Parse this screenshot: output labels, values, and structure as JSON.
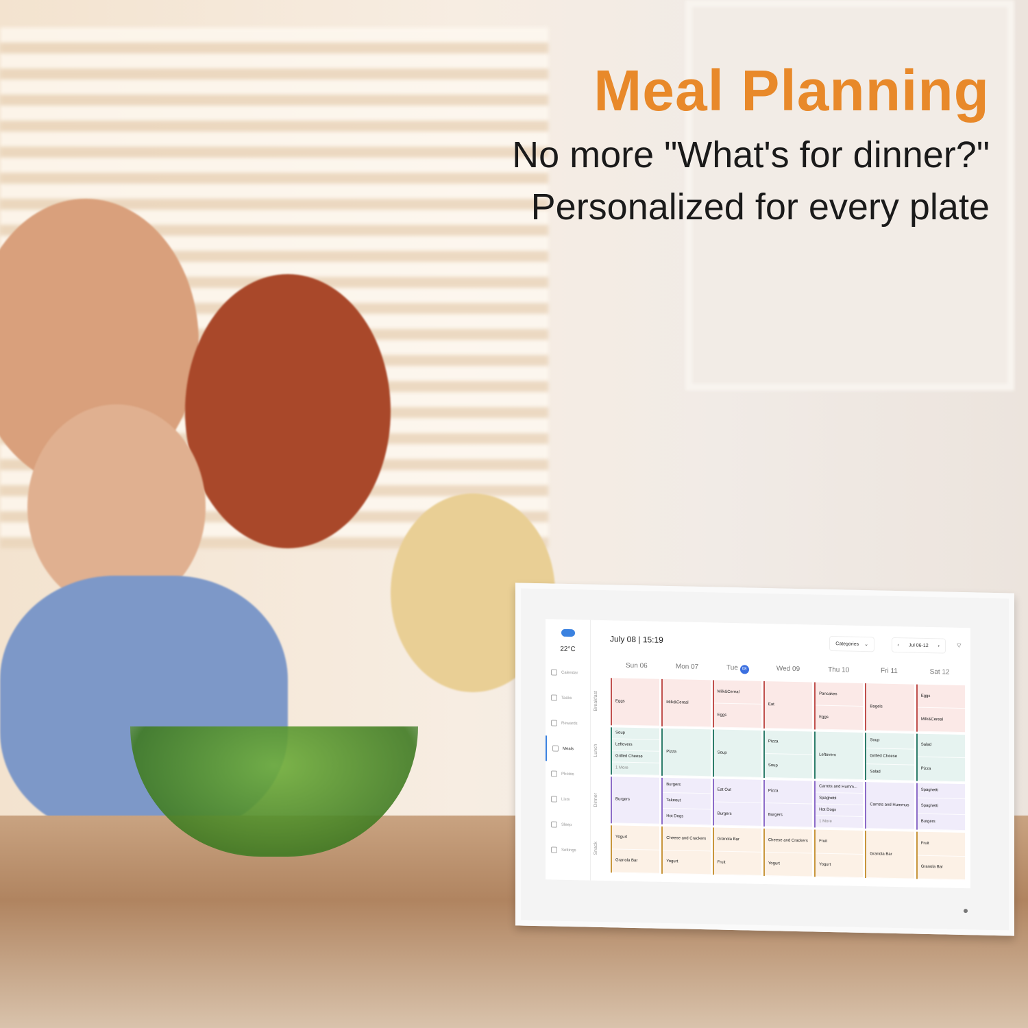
{
  "headline": {
    "title": "Meal Planning",
    "line1": "No more \"What's for dinner?\"",
    "line2": "Personalized for every plate"
  },
  "colors": {
    "accent": "#e8892a",
    "breakfast": "#fbe9e7",
    "breakfast_bar": "#c0504d",
    "lunch": "#e6f3f0",
    "lunch_bar": "#2e7d6b",
    "dinner": "#f0ecfa",
    "dinner_bar": "#8c6cc8",
    "snack": "#fcf1e6",
    "snack_bar": "#c8963c"
  },
  "screen": {
    "weather": {
      "icon": "cloud-icon",
      "temp": "22°C"
    },
    "nav": [
      {
        "label": "Calendar",
        "icon": "calendar-icon"
      },
      {
        "label": "Tasks",
        "icon": "tasks-icon"
      },
      {
        "label": "Rewards",
        "icon": "rewards-icon"
      },
      {
        "label": "Meals",
        "icon": "meals-icon"
      },
      {
        "label": "Photos",
        "icon": "photos-icon"
      },
      {
        "label": "Lists",
        "icon": "lists-icon"
      },
      {
        "label": "Sleep",
        "icon": "sleep-icon"
      },
      {
        "label": "Settings",
        "icon": "settings-icon"
      }
    ],
    "date": "July 08",
    "time": "15:19",
    "categories": "Categories",
    "range": "Jul 06-12",
    "days": [
      {
        "label": "Sun 06"
      },
      {
        "label": "Mon 07"
      },
      {
        "label": "Tue",
        "badge": "08"
      },
      {
        "label": "Wed 09"
      },
      {
        "label": "Thu 10"
      },
      {
        "label": "Fri 11"
      },
      {
        "label": "Sat 12"
      }
    ],
    "meals": [
      {
        "label": "Breakfast",
        "key": "breakfast",
        "cells": [
          [
            "Eggs"
          ],
          [
            "Milk&Cereal"
          ],
          [
            "Milk&Cereal",
            "Eggs"
          ],
          [
            "Eat"
          ],
          [
            "Pancakes",
            "Eggs"
          ],
          [
            "Bagels"
          ],
          [
            "Eggs",
            "Milk&Cereal"
          ]
        ]
      },
      {
        "label": "Lunch",
        "key": "lunch",
        "cells": [
          [
            "Soup",
            "Leftovers",
            "Grilled Cheese",
            "1 More"
          ],
          [
            "Pizza"
          ],
          [
            "Soup"
          ],
          [
            "Pizza",
            "Soup"
          ],
          [
            "Leftovers"
          ],
          [
            "Soup",
            "Grilled Cheese",
            "Salad"
          ],
          [
            "Salad",
            "Pizza"
          ]
        ]
      },
      {
        "label": "Dinner",
        "key": "dinner",
        "cells": [
          [
            "Burgers"
          ],
          [
            "Burgers",
            "Takeout",
            "Hot Dogs"
          ],
          [
            "Eat Out",
            "Burgers"
          ],
          [
            "Pizza",
            "Burgers"
          ],
          [
            "Carrots and Humm...",
            "Spaghetti",
            "Hot Dogs",
            "1 More"
          ],
          [
            "Carrots and Hummus"
          ],
          [
            "Spaghetti",
            "Spaghetti",
            "Burgers"
          ]
        ]
      },
      {
        "label": "Snack",
        "key": "snack",
        "cells": [
          [
            "Yogurt",
            "Granola Bar"
          ],
          [
            "Cheese and Crackers",
            "Yogurt"
          ],
          [
            "Granola Bar",
            "Fruit"
          ],
          [
            "Cheese and Crackers",
            "Yogurt"
          ],
          [
            "Fruit",
            "Yogurt"
          ],
          [
            "Granola Bar"
          ],
          [
            "Fruit",
            "Granola Bar"
          ]
        ]
      }
    ]
  }
}
